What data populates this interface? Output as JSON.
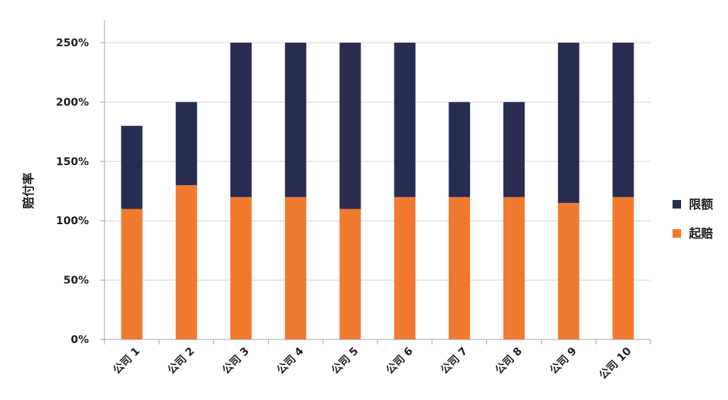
{
  "chart_data": {
    "type": "bar",
    "stacked": true,
    "categories": [
      "公司 1",
      "公司 2",
      "公司 3",
      "公司 4",
      "公司 5",
      "公司 6",
      "公司 7",
      "公司 8",
      "公司 9",
      "公司 10"
    ],
    "series": [
      {
        "name": "起赔",
        "color": "#F07A30",
        "values": [
          110,
          130,
          120,
          120,
          110,
          120,
          120,
          120,
          115,
          120
        ]
      },
      {
        "name": "限额",
        "color": "#2A2C52",
        "values": [
          70,
          70,
          130,
          130,
          140,
          130,
          80,
          80,
          135,
          130
        ]
      }
    ],
    "totals": [
      180,
      200,
      250,
      250,
      250,
      250,
      200,
      200,
      250,
      250
    ],
    "ylabel": "赔付率",
    "xlabel": "",
    "ylim": [
      0,
      250
    ],
    "yticks": [
      "0%",
      "50%",
      "100%",
      "150%",
      "200%",
      "250%"
    ],
    "grid": true,
    "legend": {
      "position": "right",
      "order": [
        "限额",
        "起赔"
      ]
    }
  }
}
